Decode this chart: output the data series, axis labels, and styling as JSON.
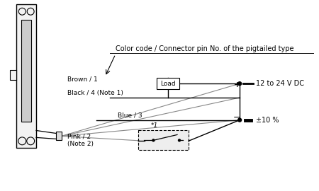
{
  "bg_color": "#ffffff",
  "lc": "#000000",
  "gc": "#888888",
  "title_text": "Color code / Connector pin No. of the pigtailed type",
  "wire_labels": [
    "Brown / 1",
    "Black / 4 (Note 1)",
    "Blue / 3",
    "Pink / 2"
  ],
  "note2": "(Note 2)",
  "load_label": "Load",
  "voltage_line1": "12 to 24 V DC",
  "voltage_line2": "±10 %",
  "star1": "*1",
  "figsize": [
    4.5,
    2.7
  ],
  "dpi": 100
}
